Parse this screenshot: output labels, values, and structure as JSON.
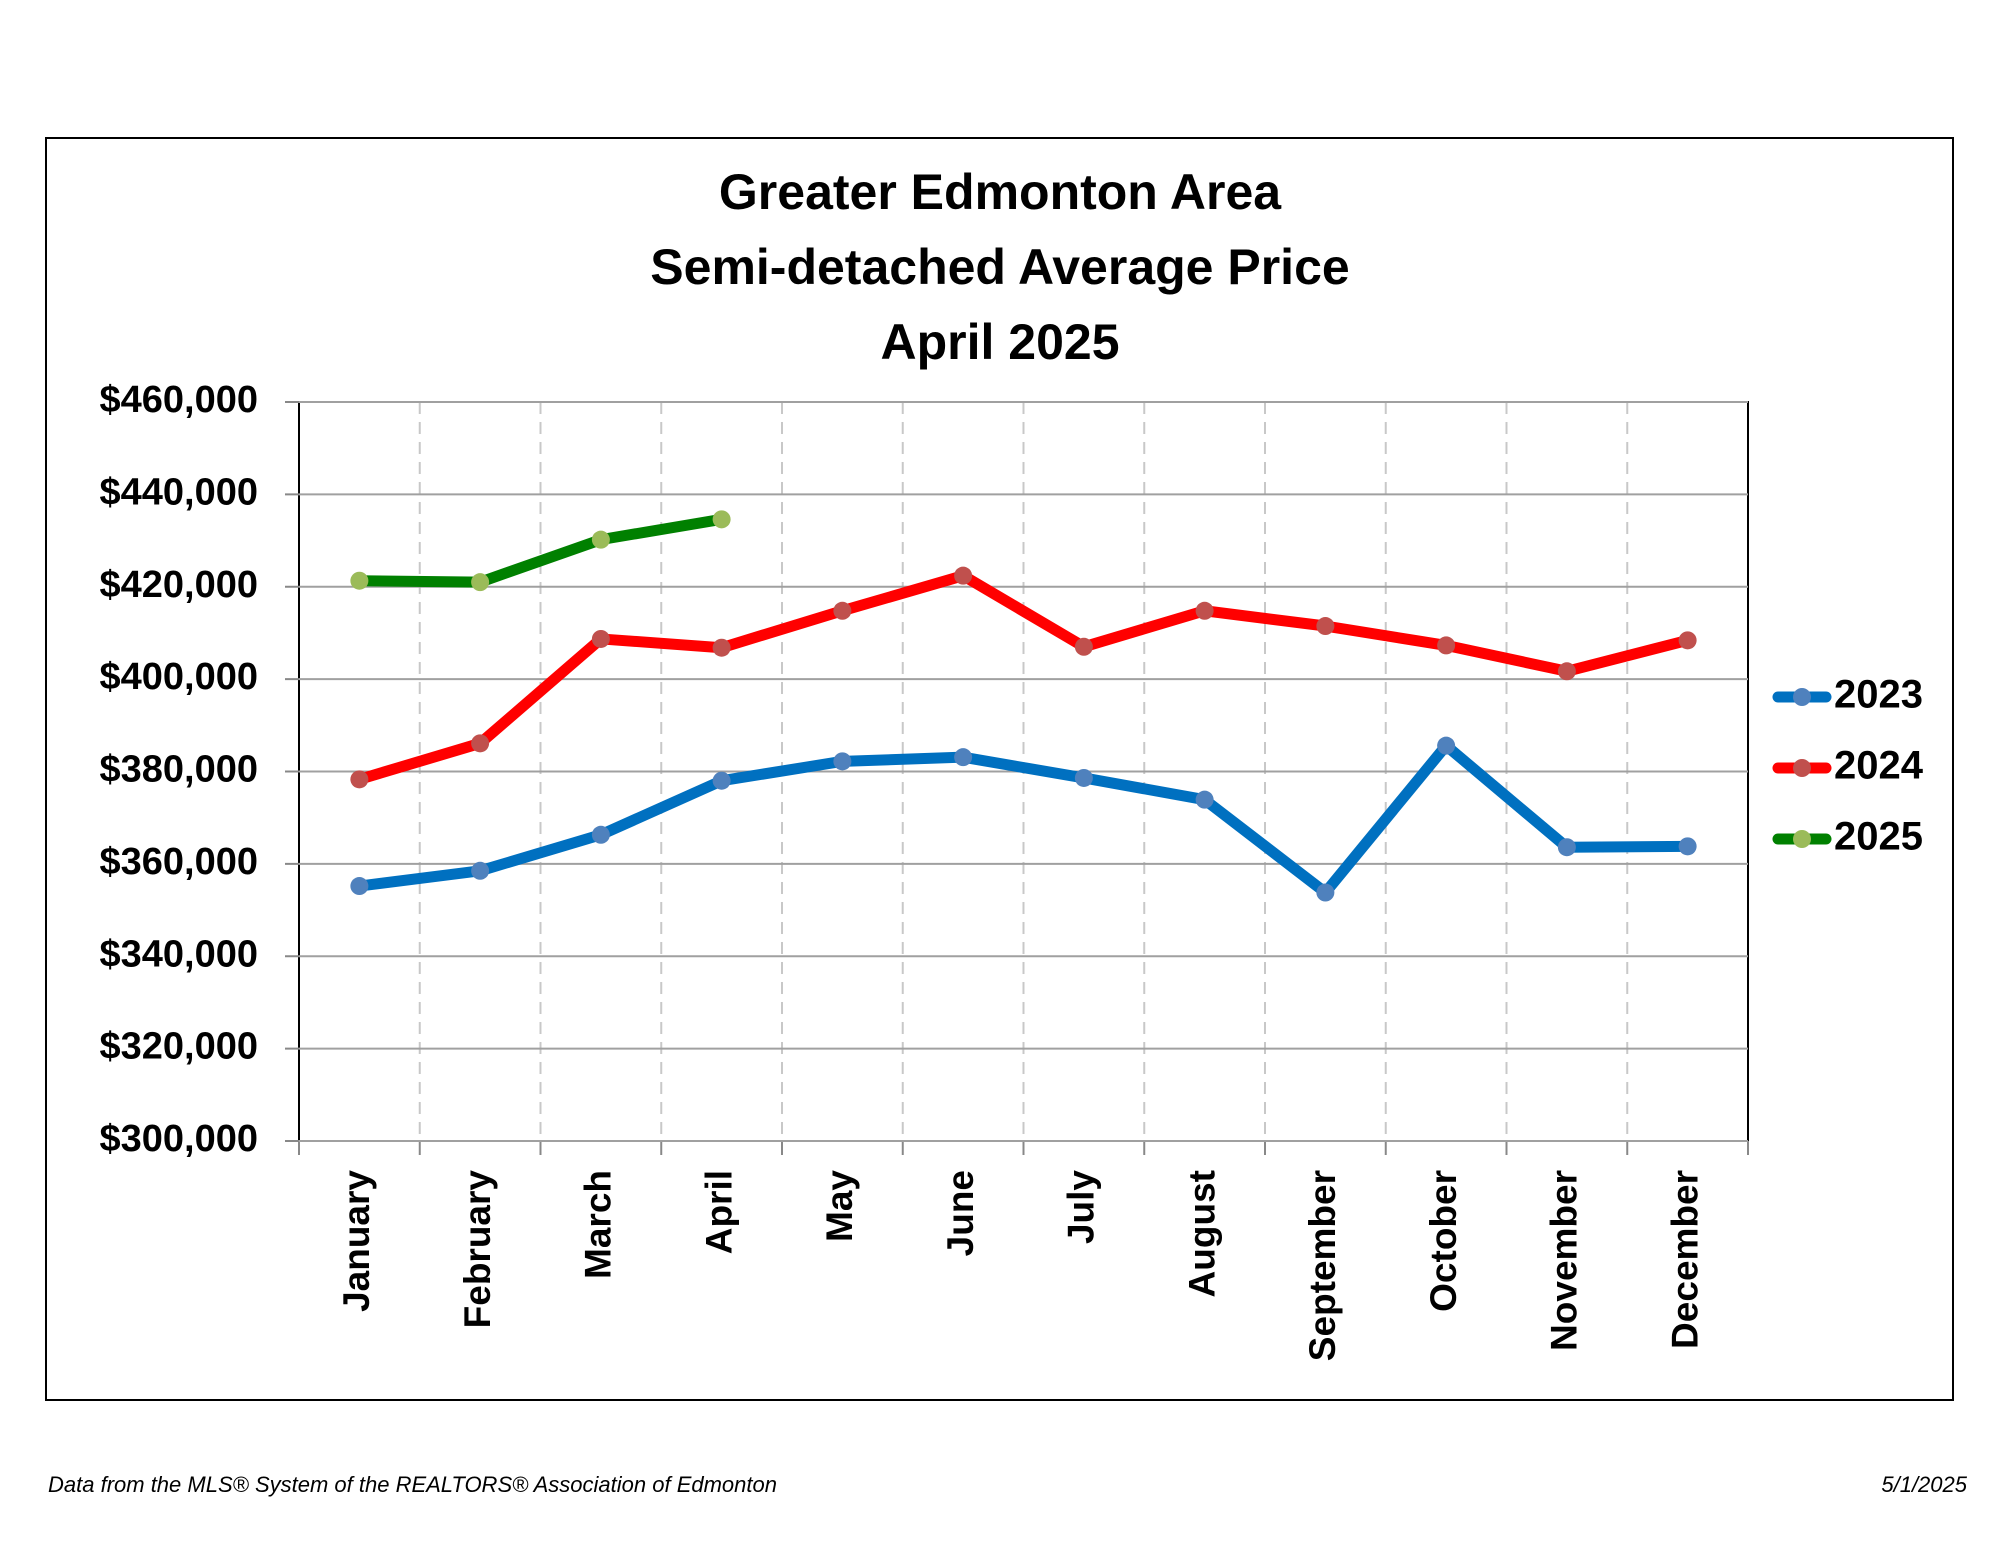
{
  "chart_data": {
    "type": "line",
    "title": [
      "Greater Edmonton Area",
      "Semi-detached Average Price",
      "April 2025"
    ],
    "categories": [
      "January",
      "February",
      "March",
      "April",
      "May",
      "June",
      "July",
      "August",
      "September",
      "October",
      "November",
      "December"
    ],
    "series": [
      {
        "name": "2023",
        "color": "#0070c0",
        "marker_color": "#4f81bd",
        "values": [
          355200,
          358500,
          366300,
          378000,
          382200,
          383100,
          378600,
          373900,
          353800,
          385600,
          363600,
          363800
        ]
      },
      {
        "name": "2024",
        "color": "#ff0000",
        "marker_color": "#c0504d",
        "values": [
          378300,
          386100,
          408700,
          406800,
          414800,
          422400,
          407000,
          414800,
          411500,
          407300,
          401700,
          408400
        ]
      },
      {
        "name": "2025",
        "color": "#008000",
        "marker_color": "#9bbb59",
        "values": [
          421300,
          421000,
          430200,
          434600,
          null,
          null,
          null,
          null,
          null,
          null,
          null,
          null
        ]
      }
    ],
    "ylim": [
      300000,
      460000
    ],
    "yticks": [
      {
        "value": 300000,
        "label": "$300,000"
      },
      {
        "value": 320000,
        "label": "$320,000"
      },
      {
        "value": 340000,
        "label": "$340,000"
      },
      {
        "value": 360000,
        "label": "$360,000"
      },
      {
        "value": 380000,
        "label": "$380,000"
      },
      {
        "value": 400000,
        "label": "$400,000"
      },
      {
        "value": 420000,
        "label": "$420,000"
      },
      {
        "value": 440000,
        "label": "$440,000"
      },
      {
        "value": 460000,
        "label": "$460,000"
      }
    ],
    "grid": true,
    "legend": "right",
    "footer_source": "Data from the MLS® System of the REALTORS® Association of Edmonton",
    "footer_date": "5/1/2025"
  }
}
